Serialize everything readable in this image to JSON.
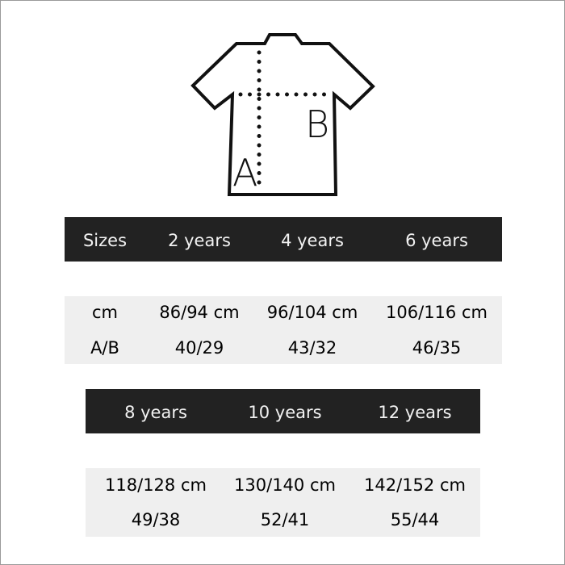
{
  "diagram": {
    "label_a": "A",
    "label_b": "B",
    "icon": "t-shirt-icon"
  },
  "table1": {
    "headers": [
      "Sizes",
      "2 years",
      "4 years",
      "6 years"
    ],
    "rows": [
      [
        "cm",
        "86/94 cm",
        "96/104 cm",
        "106/116 cm"
      ],
      [
        "A/B",
        "40/29",
        "43/32",
        "46/35"
      ]
    ]
  },
  "table2": {
    "headers": [
      "8 years",
      "10 years",
      "12 years"
    ],
    "rows": [
      [
        "118/128 cm",
        "130/140 cm",
        "142/152 cm"
      ],
      [
        "49/38",
        "52/41",
        "55/44"
      ]
    ]
  },
  "colors": {
    "header_bg": "#222222",
    "header_text": "#f2f2f2",
    "row_bg": "#efefef"
  }
}
